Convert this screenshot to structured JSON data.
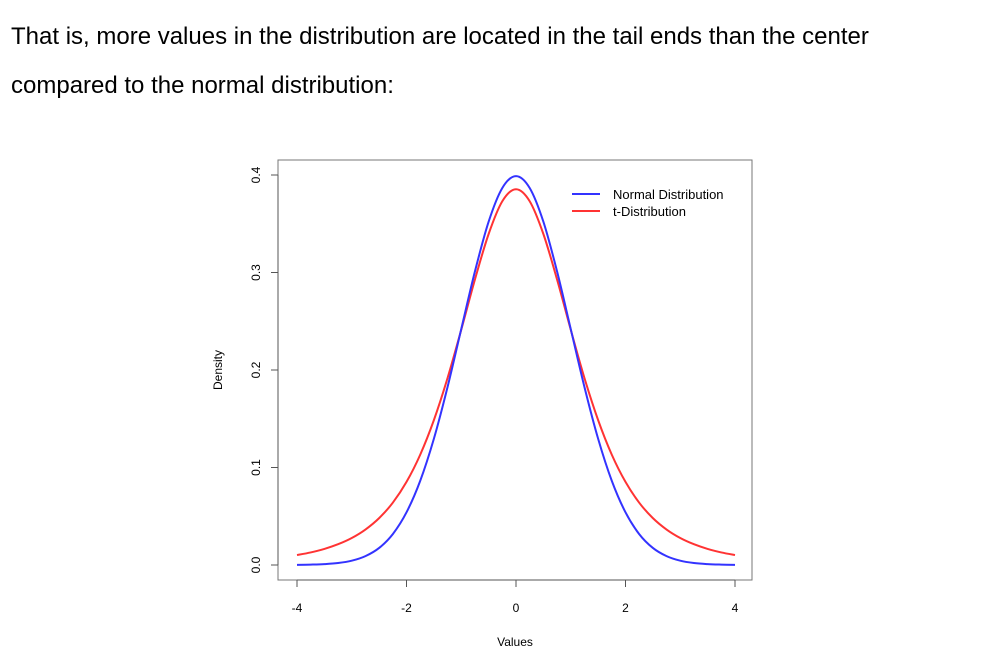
{
  "intro_text": "That is, more values in the distribution are located in the tail ends than the center compared to the normal distribution:",
  "chart_data": {
    "type": "line",
    "title": "",
    "xlabel": "Values",
    "ylabel": "Density",
    "xlim": [
      -4,
      4
    ],
    "ylim": [
      0,
      0.4
    ],
    "x_ticks": [
      -4,
      -2,
      0,
      2,
      4
    ],
    "x_tick_labels": [
      "-4",
      "-2",
      "0",
      "2",
      "4"
    ],
    "y_ticks": [
      0.0,
      0.1,
      0.2,
      0.3,
      0.4
    ],
    "y_tick_labels": [
      "0.0",
      "0.1",
      "0.2",
      "0.3",
      "0.4"
    ],
    "grid": false,
    "legend_position": "top-right",
    "x": [
      -4,
      -3.75,
      -3.5,
      -3.25,
      -3,
      -2.75,
      -2.5,
      -2.25,
      -2,
      -1.75,
      -1.5,
      -1.25,
      -1,
      -0.75,
      -0.5,
      -0.25,
      0,
      0.25,
      0.5,
      0.75,
      1,
      1.25,
      1.5,
      1.75,
      2,
      2.25,
      2.5,
      2.75,
      3,
      3.25,
      3.5,
      3.75,
      4
    ],
    "series": [
      {
        "name": "Normal Distribution",
        "color": "#3333ff",
        "values": [
          0.0001,
          0.0004,
          0.0009,
          0.002,
          0.0044,
          0.0091,
          0.0175,
          0.0317,
          0.054,
          0.0863,
          0.1295,
          0.1826,
          0.242,
          0.3011,
          0.3521,
          0.3867,
          0.3989,
          0.3867,
          0.3521,
          0.3011,
          0.242,
          0.1826,
          0.1295,
          0.0863,
          0.054,
          0.0317,
          0.0175,
          0.0091,
          0.0044,
          0.002,
          0.0009,
          0.0004,
          0.0001
        ]
      },
      {
        "name": "t-Distribution",
        "color": "#ff3333",
        "values": [
          0.0102,
          0.0129,
          0.0165,
          0.0213,
          0.0277,
          0.0364,
          0.0481,
          0.0639,
          0.0852,
          0.1131,
          0.1486,
          0.1918,
          0.2413,
          0.2928,
          0.3395,
          0.3731,
          0.3854,
          0.3731,
          0.3395,
          0.2928,
          0.2413,
          0.1918,
          0.1486,
          0.1131,
          0.0852,
          0.0639,
          0.0481,
          0.0364,
          0.0277,
          0.0213,
          0.0165,
          0.0129,
          0.0102
        ]
      }
    ]
  }
}
